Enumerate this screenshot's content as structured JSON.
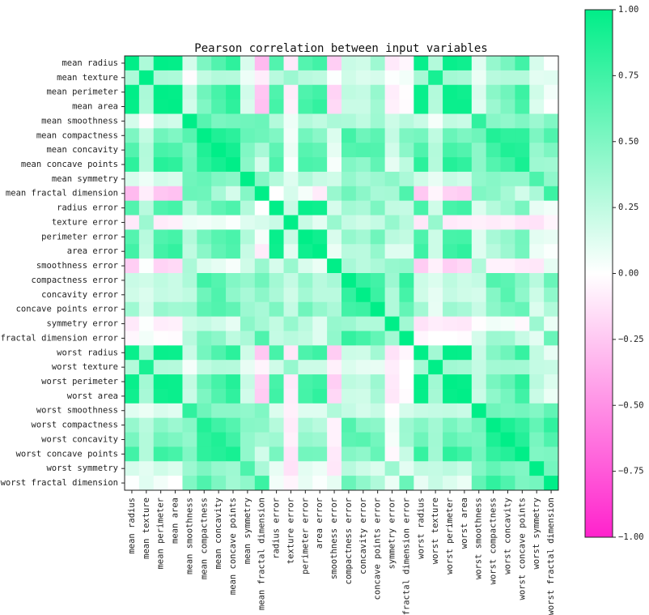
{
  "chart_data": {
    "type": "heatmap",
    "title": "Pearson correlation between input variables",
    "labels": [
      "mean radius",
      "mean texture",
      "mean perimeter",
      "mean area",
      "mean smoothness",
      "mean compactness",
      "mean concavity",
      "mean concave points",
      "mean symmetry",
      "mean fractal dimension",
      "radius error",
      "texture error",
      "perimeter error",
      "area error",
      "smoothness error",
      "compactness error",
      "concavity error",
      "concave points error",
      "symmetry error",
      "fractal dimension error",
      "worst radius",
      "worst texture",
      "worst perimeter",
      "worst area",
      "worst smoothness",
      "worst compactness",
      "worst concavity",
      "worst concave points",
      "worst symmetry",
      "worst fractal dimension"
    ],
    "values": [
      [
        1.0,
        0.32,
        1.0,
        0.99,
        0.17,
        0.51,
        0.68,
        0.82,
        0.15,
        -0.31,
        0.68,
        -0.1,
        0.67,
        0.74,
        -0.22,
        0.21,
        0.19,
        0.38,
        -0.1,
        -0.04,
        0.97,
        0.3,
        0.97,
        0.94,
        0.12,
        0.41,
        0.53,
        0.74,
        0.16,
        0.01
      ],
      [
        0.32,
        1.0,
        0.33,
        0.32,
        -0.02,
        0.24,
        0.3,
        0.29,
        0.07,
        -0.08,
        0.28,
        0.39,
        0.28,
        0.26,
        0.01,
        0.19,
        0.14,
        0.16,
        0.01,
        0.05,
        0.35,
        0.91,
        0.36,
        0.34,
        0.08,
        0.28,
        0.3,
        0.3,
        0.11,
        0.12
      ],
      [
        1.0,
        0.33,
        1.0,
        0.99,
        0.21,
        0.56,
        0.72,
        0.85,
        0.18,
        -0.26,
        0.69,
        -0.09,
        0.69,
        0.74,
        -0.2,
        0.25,
        0.23,
        0.41,
        -0.08,
        -0.01,
        0.97,
        0.3,
        0.97,
        0.94,
        0.15,
        0.46,
        0.56,
        0.77,
        0.19,
        0.05
      ],
      [
        0.99,
        0.32,
        0.99,
        1.0,
        0.18,
        0.5,
        0.69,
        0.82,
        0.15,
        -0.28,
        0.73,
        -0.07,
        0.73,
        0.8,
        -0.17,
        0.21,
        0.21,
        0.37,
        -0.07,
        -0.02,
        0.96,
        0.29,
        0.96,
        0.96,
        0.12,
        0.39,
        0.51,
        0.72,
        0.14,
        0.0
      ],
      [
        0.17,
        -0.02,
        0.21,
        0.18,
        1.0,
        0.66,
        0.52,
        0.55,
        0.56,
        0.58,
        0.3,
        0.07,
        0.3,
        0.25,
        0.33,
        0.32,
        0.25,
        0.38,
        0.2,
        0.28,
        0.21,
        0.04,
        0.24,
        0.21,
        0.81,
        0.47,
        0.43,
        0.5,
        0.39,
        0.5
      ],
      [
        0.51,
        0.24,
        0.56,
        0.5,
        0.66,
        1.0,
        0.88,
        0.83,
        0.6,
        0.57,
        0.5,
        0.05,
        0.55,
        0.46,
        0.14,
        0.74,
        0.57,
        0.64,
        0.23,
        0.51,
        0.54,
        0.25,
        0.59,
        0.51,
        0.57,
        0.87,
        0.82,
        0.82,
        0.51,
        0.69
      ],
      [
        0.68,
        0.3,
        0.72,
        0.69,
        0.52,
        0.88,
        1.0,
        0.92,
        0.5,
        0.34,
        0.63,
        0.08,
        0.66,
        0.62,
        0.1,
        0.67,
        0.69,
        0.68,
        0.18,
        0.45,
        0.69,
        0.3,
        0.73,
        0.68,
        0.45,
        0.75,
        0.88,
        0.86,
        0.41,
        0.51
      ],
      [
        0.82,
        0.29,
        0.85,
        0.82,
        0.55,
        0.83,
        0.92,
        1.0,
        0.46,
        0.17,
        0.7,
        0.02,
        0.71,
        0.69,
        0.03,
        0.49,
        0.44,
        0.62,
        0.1,
        0.26,
        0.83,
        0.29,
        0.86,
        0.81,
        0.45,
        0.67,
        0.75,
        0.91,
        0.38,
        0.37
      ],
      [
        0.15,
        0.07,
        0.18,
        0.15,
        0.56,
        0.6,
        0.5,
        0.46,
        1.0,
        0.48,
        0.3,
        0.13,
        0.31,
        0.22,
        0.19,
        0.42,
        0.34,
        0.39,
        0.45,
        0.33,
        0.19,
        0.09,
        0.22,
        0.18,
        0.43,
        0.47,
        0.43,
        0.43,
        0.7,
        0.44
      ],
      [
        -0.31,
        -0.08,
        -0.26,
        -0.28,
        0.58,
        0.57,
        0.34,
        0.17,
        0.48,
        1.0,
        0.0,
        0.16,
        0.04,
        -0.09,
        0.4,
        0.56,
        0.45,
        0.34,
        0.35,
        0.69,
        -0.25,
        -0.05,
        -0.21,
        -0.23,
        0.5,
        0.46,
        0.35,
        0.18,
        0.33,
        0.77
      ],
      [
        0.68,
        0.28,
        0.69,
        0.73,
        0.3,
        0.5,
        0.63,
        0.7,
        0.3,
        0.0,
        1.0,
        0.21,
        0.97,
        0.95,
        0.16,
        0.36,
        0.33,
        0.51,
        0.24,
        0.23,
        0.72,
        0.19,
        0.72,
        0.75,
        0.14,
        0.29,
        0.38,
        0.53,
        0.09,
        0.05
      ],
      [
        -0.1,
        0.39,
        -0.09,
        -0.07,
        0.07,
        0.05,
        0.08,
        0.02,
        0.13,
        0.16,
        0.21,
        1.0,
        0.22,
        0.11,
        0.4,
        0.23,
        0.19,
        0.23,
        0.41,
        0.28,
        -0.11,
        0.41,
        -0.1,
        -0.08,
        -0.07,
        -0.09,
        -0.07,
        -0.12,
        -0.13,
        -0.05
      ],
      [
        0.67,
        0.28,
        0.69,
        0.73,
        0.3,
        0.55,
        0.66,
        0.71,
        0.31,
        0.04,
        0.97,
        0.22,
        1.0,
        0.94,
        0.15,
        0.42,
        0.36,
        0.56,
        0.27,
        0.24,
        0.7,
        0.2,
        0.72,
        0.73,
        0.13,
        0.34,
        0.42,
        0.55,
        0.11,
        0.09
      ],
      [
        0.74,
        0.26,
        0.74,
        0.8,
        0.25,
        0.46,
        0.62,
        0.69,
        0.22,
        -0.09,
        0.95,
        0.11,
        0.94,
        1.0,
        0.08,
        0.28,
        0.27,
        0.42,
        0.13,
        0.13,
        0.76,
        0.2,
        0.76,
        0.81,
        0.13,
        0.28,
        0.39,
        0.54,
        0.07,
        0.02
      ],
      [
        -0.22,
        0.01,
        -0.2,
        -0.17,
        0.33,
        0.14,
        0.1,
        0.03,
        0.19,
        0.4,
        0.16,
        0.4,
        0.15,
        0.08,
        1.0,
        0.34,
        0.27,
        0.33,
        0.41,
        0.43,
        -0.23,
        -0.07,
        -0.22,
        -0.18,
        0.31,
        -0.06,
        -0.06,
        -0.1,
        -0.11,
        0.1
      ],
      [
        0.21,
        0.19,
        0.25,
        0.21,
        0.32,
        0.74,
        0.67,
        0.49,
        0.42,
        0.56,
        0.36,
        0.23,
        0.42,
        0.28,
        0.34,
        1.0,
        0.8,
        0.74,
        0.39,
        0.8,
        0.2,
        0.14,
        0.26,
        0.2,
        0.23,
        0.68,
        0.64,
        0.48,
        0.28,
        0.59
      ],
      [
        0.19,
        0.14,
        0.23,
        0.21,
        0.25,
        0.57,
        0.69,
        0.44,
        0.34,
        0.45,
        0.33,
        0.19,
        0.36,
        0.27,
        0.27,
        0.8,
        1.0,
        0.77,
        0.31,
        0.73,
        0.19,
        0.1,
        0.23,
        0.19,
        0.17,
        0.48,
        0.66,
        0.44,
        0.2,
        0.44
      ],
      [
        0.38,
        0.16,
        0.41,
        0.37,
        0.38,
        0.64,
        0.68,
        0.62,
        0.39,
        0.34,
        0.51,
        0.23,
        0.56,
        0.42,
        0.33,
        0.74,
        0.77,
        1.0,
        0.31,
        0.61,
        0.36,
        0.09,
        0.39,
        0.34,
        0.22,
        0.45,
        0.55,
        0.6,
        0.14,
        0.31
      ],
      [
        -0.1,
        0.01,
        -0.08,
        -0.07,
        0.2,
        0.23,
        0.18,
        0.1,
        0.45,
        0.35,
        0.24,
        0.41,
        0.27,
        0.13,
        0.41,
        0.39,
        0.31,
        0.31,
        1.0,
        0.37,
        -0.13,
        -0.08,
        -0.1,
        -0.11,
        -0.01,
        0.06,
        0.04,
        -0.03,
        0.39,
        0.08
      ],
      [
        -0.04,
        0.05,
        -0.01,
        -0.02,
        0.28,
        0.51,
        0.45,
        0.26,
        0.33,
        0.69,
        0.23,
        0.28,
        0.24,
        0.13,
        0.43,
        0.8,
        0.73,
        0.61,
        0.37,
        1.0,
        -0.04,
        -0.0,
        -0.0,
        -0.02,
        0.17,
        0.39,
        0.38,
        0.22,
        0.11,
        0.59
      ],
      [
        0.97,
        0.35,
        0.97,
        0.96,
        0.21,
        0.54,
        0.69,
        0.83,
        0.19,
        -0.25,
        0.72,
        -0.11,
        0.7,
        0.76,
        -0.23,
        0.2,
        0.19,
        0.36,
        -0.13,
        -0.04,
        1.0,
        0.36,
        0.99,
        0.98,
        0.22,
        0.48,
        0.57,
        0.79,
        0.24,
        0.09
      ],
      [
        0.3,
        0.91,
        0.3,
        0.29,
        0.04,
        0.25,
        0.3,
        0.29,
        0.09,
        -0.05,
        0.19,
        0.41,
        0.2,
        0.2,
        -0.07,
        0.14,
        0.1,
        0.09,
        -0.08,
        -0.0,
        0.36,
        1.0,
        0.37,
        0.35,
        0.23,
        0.36,
        0.37,
        0.36,
        0.23,
        0.22
      ],
      [
        0.97,
        0.36,
        0.97,
        0.96,
        0.24,
        0.59,
        0.73,
        0.86,
        0.22,
        -0.21,
        0.72,
        -0.1,
        0.72,
        0.76,
        -0.22,
        0.26,
        0.23,
        0.39,
        -0.1,
        -0.0,
        0.99,
        0.37,
        1.0,
        0.98,
        0.24,
        0.53,
        0.62,
        0.82,
        0.27,
        0.14
      ],
      [
        0.94,
        0.34,
        0.94,
        0.96,
        0.21,
        0.51,
        0.68,
        0.81,
        0.18,
        -0.23,
        0.75,
        -0.08,
        0.73,
        0.81,
        -0.18,
        0.2,
        0.19,
        0.34,
        -0.11,
        -0.02,
        0.98,
        0.35,
        0.98,
        1.0,
        0.21,
        0.44,
        0.54,
        0.75,
        0.21,
        0.08
      ],
      [
        0.12,
        0.08,
        0.15,
        0.12,
        0.81,
        0.57,
        0.45,
        0.45,
        0.43,
        0.5,
        0.14,
        -0.07,
        0.13,
        0.13,
        0.31,
        0.23,
        0.17,
        0.22,
        -0.01,
        0.17,
        0.22,
        0.23,
        0.24,
        0.21,
        1.0,
        0.57,
        0.52,
        0.55,
        0.49,
        0.62
      ],
      [
        0.41,
        0.28,
        0.46,
        0.39,
        0.47,
        0.87,
        0.75,
        0.67,
        0.47,
        0.46,
        0.29,
        -0.09,
        0.34,
        0.28,
        -0.06,
        0.68,
        0.48,
        0.45,
        0.06,
        0.39,
        0.48,
        0.36,
        0.53,
        0.44,
        0.57,
        1.0,
        0.89,
        0.8,
        0.61,
        0.81
      ],
      [
        0.53,
        0.3,
        0.56,
        0.51,
        0.43,
        0.82,
        0.88,
        0.75,
        0.43,
        0.35,
        0.38,
        -0.07,
        0.42,
        0.39,
        -0.06,
        0.64,
        0.66,
        0.55,
        0.04,
        0.38,
        0.57,
        0.37,
        0.62,
        0.54,
        0.52,
        0.89,
        1.0,
        0.86,
        0.53,
        0.69
      ],
      [
        0.74,
        0.3,
        0.77,
        0.72,
        0.5,
        0.82,
        0.86,
        0.91,
        0.43,
        0.18,
        0.53,
        -0.12,
        0.55,
        0.54,
        -0.1,
        0.48,
        0.44,
        0.6,
        -0.03,
        0.22,
        0.79,
        0.36,
        0.82,
        0.75,
        0.55,
        0.8,
        0.86,
        1.0,
        0.5,
        0.51
      ],
      [
        0.16,
        0.11,
        0.19,
        0.14,
        0.39,
        0.51,
        0.41,
        0.38,
        0.7,
        0.33,
        0.09,
        -0.13,
        0.11,
        0.07,
        -0.11,
        0.28,
        0.2,
        0.14,
        0.39,
        0.11,
        0.24,
        0.23,
        0.27,
        0.21,
        0.49,
        0.61,
        0.53,
        0.5,
        1.0,
        0.54
      ],
      [
        0.01,
        0.12,
        0.05,
        0.0,
        0.5,
        0.69,
        0.51,
        0.37,
        0.44,
        0.77,
        0.05,
        -0.05,
        0.09,
        0.02,
        0.1,
        0.59,
        0.44,
        0.31,
        0.08,
        0.59,
        0.09,
        0.22,
        0.14,
        0.08,
        0.62,
        0.81,
        0.69,
        0.51,
        0.54,
        1.0
      ]
    ],
    "zlim": [
      -1.0,
      1.0
    ],
    "colorbar_ticks": [
      "1.00",
      "0.75",
      "0.50",
      "0.25",
      "0.00",
      "−0.25",
      "−0.50",
      "−0.75",
      "−1.00"
    ],
    "colors": {
      "positive": "#00ee88",
      "zero": "#ffffff",
      "negative": "#ff22cc"
    }
  }
}
